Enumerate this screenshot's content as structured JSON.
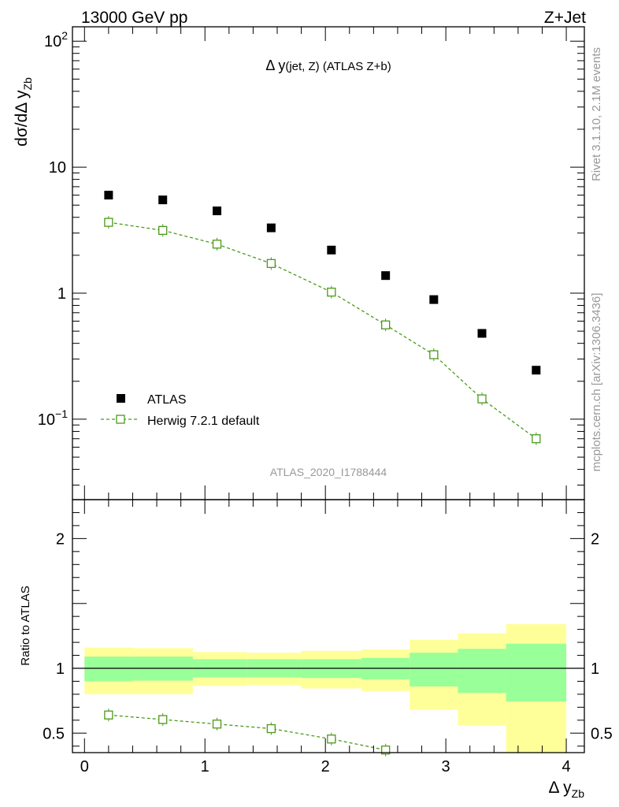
{
  "header": {
    "energy_label": "13000 GeV pp",
    "process_label": "Z+Jet"
  },
  "side_labels": {
    "rivet": "Rivet 3.1.10,  2.1M events",
    "mcplots": "mcplots.cern.ch [arXiv:1306.3436]"
  },
  "chart_data": [
    {
      "type": "scatter",
      "panel": "main",
      "title": "Δ y(jet, Z) (ATLAS Z+b)",
      "analysis_label": "ATLAS_2020_I1788444",
      "xlabel": "Δ y",
      "xlabel_sub": "Zb",
      "ylabel": "dσ/dΔ y",
      "ylabel_sub": "Zb",
      "yscale": "log",
      "xlim": [
        -0.1,
        4.15
      ],
      "ylim": [
        0.023,
        130
      ],
      "yticks": [
        {
          "value": 100,
          "label": "10",
          "exp": "2"
        },
        {
          "value": 10,
          "label": "10",
          "exp": ""
        },
        {
          "value": 1,
          "label": "1",
          "exp": ""
        },
        {
          "value": 0.1,
          "label": "10",
          "exp": "−1"
        }
      ],
      "legend": {
        "position": "bottom-left"
      },
      "series": [
        {
          "name": "ATLAS",
          "marker": "filled-square",
          "color": "#000000",
          "x": [
            0.2,
            0.65,
            1.1,
            1.55,
            2.05,
            2.5,
            2.9,
            3.3,
            3.75
          ],
          "y": [
            6.0,
            5.5,
            4.5,
            3.3,
            2.2,
            1.38,
            0.89,
            0.48,
            0.245
          ]
        },
        {
          "name": "Herwig 7.2.1 default",
          "marker": "open-square",
          "line": "dashed",
          "color": "#4b9a1a",
          "x": [
            0.2,
            0.65,
            1.1,
            1.55,
            2.05,
            2.5,
            2.9,
            3.3,
            3.75
          ],
          "y": [
            3.65,
            3.15,
            2.45,
            1.72,
            1.02,
            0.56,
            0.325,
            0.145,
            0.07
          ]
        }
      ]
    },
    {
      "type": "bar",
      "panel": "ratio",
      "ylabel": "Ratio to ATLAS",
      "ylim": [
        0.35,
        2.3
      ],
      "xlim": [
        -0.1,
        4.15
      ],
      "xticks": [
        0,
        1,
        2,
        3,
        4
      ],
      "yticks": [
        0.5,
        1,
        2
      ],
      "bins": [
        {
          "lo": 0.0,
          "hi": 0.4,
          "green": [
            0.9,
            1.09
          ],
          "yellow": [
            0.8,
            1.16
          ]
        },
        {
          "lo": 0.4,
          "hi": 0.9,
          "green": [
            0.905,
            1.09
          ],
          "yellow": [
            0.8,
            1.155
          ]
        },
        {
          "lo": 0.9,
          "hi": 1.35,
          "green": [
            0.93,
            1.07
          ],
          "yellow": [
            0.865,
            1.125
          ]
        },
        {
          "lo": 1.35,
          "hi": 1.8,
          "green": [
            0.93,
            1.07
          ],
          "yellow": [
            0.87,
            1.12
          ]
        },
        {
          "lo": 1.8,
          "hi": 2.3,
          "green": [
            0.925,
            1.07
          ],
          "yellow": [
            0.845,
            1.135
          ]
        },
        {
          "lo": 2.3,
          "hi": 2.7,
          "green": [
            0.915,
            1.08
          ],
          "yellow": [
            0.825,
            1.145
          ]
        },
        {
          "lo": 2.7,
          "hi": 3.1,
          "green": [
            0.86,
            1.12
          ],
          "yellow": [
            0.68,
            1.22
          ]
        },
        {
          "lo": 3.1,
          "hi": 3.5,
          "green": [
            0.81,
            1.15
          ],
          "yellow": [
            0.56,
            1.27
          ]
        },
        {
          "lo": 3.5,
          "hi": 4.0,
          "green": [
            0.745,
            1.19
          ],
          "yellow": [
            0.35,
            1.34
          ]
        }
      ],
      "series": [
        {
          "name": "Herwig 7.2.1 default",
          "color": "#4b9a1a",
          "x": [
            0.2,
            0.65,
            1.1,
            1.55,
            2.05,
            2.5
          ],
          "y": [
            0.64,
            0.605,
            0.57,
            0.535,
            0.455,
            0.37
          ]
        }
      ]
    }
  ]
}
